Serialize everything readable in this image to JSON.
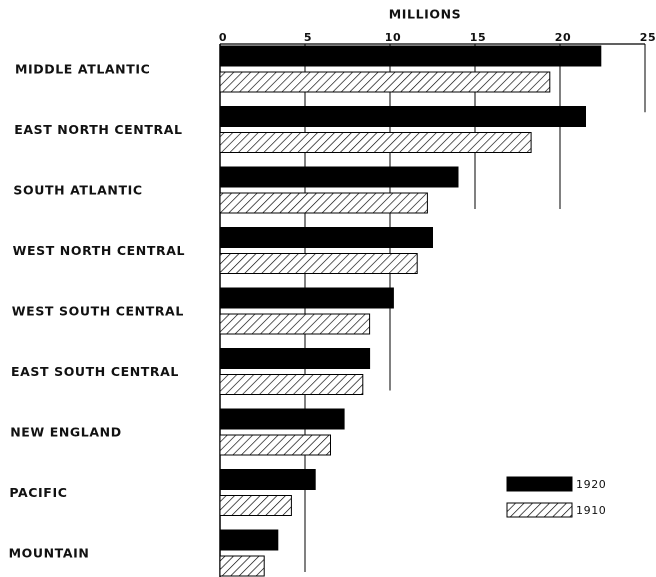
{
  "chart_data": {
    "type": "barh",
    "title": "MILLIONS",
    "categories": [
      "MIDDLE ATLANTIC",
      "EAST NORTH CENTRAL",
      "SOUTH ATLANTIC",
      "WEST NORTH CENTRAL",
      "WEST SOUTH CENTRAL",
      "EAST SOUTH CENTRAL",
      "NEW ENGLAND",
      "PACIFIC",
      "MOUNTAIN"
    ],
    "series": [
      {
        "name": "1920",
        "color": "#000000",
        "pattern": "solid",
        "values": [
          22.4,
          21.5,
          14.0,
          12.5,
          10.2,
          8.8,
          7.3,
          5.6,
          3.4
        ]
      },
      {
        "name": "1910",
        "color": "#000000",
        "pattern": "hatch",
        "values": [
          19.4,
          18.3,
          12.2,
          11.6,
          8.8,
          8.4,
          6.5,
          4.2,
          2.6
        ]
      }
    ],
    "xlim": [
      0,
      25
    ],
    "xticks": [
      0,
      5,
      10,
      15,
      20,
      25
    ],
    "grid": true,
    "legend": "lower right"
  }
}
